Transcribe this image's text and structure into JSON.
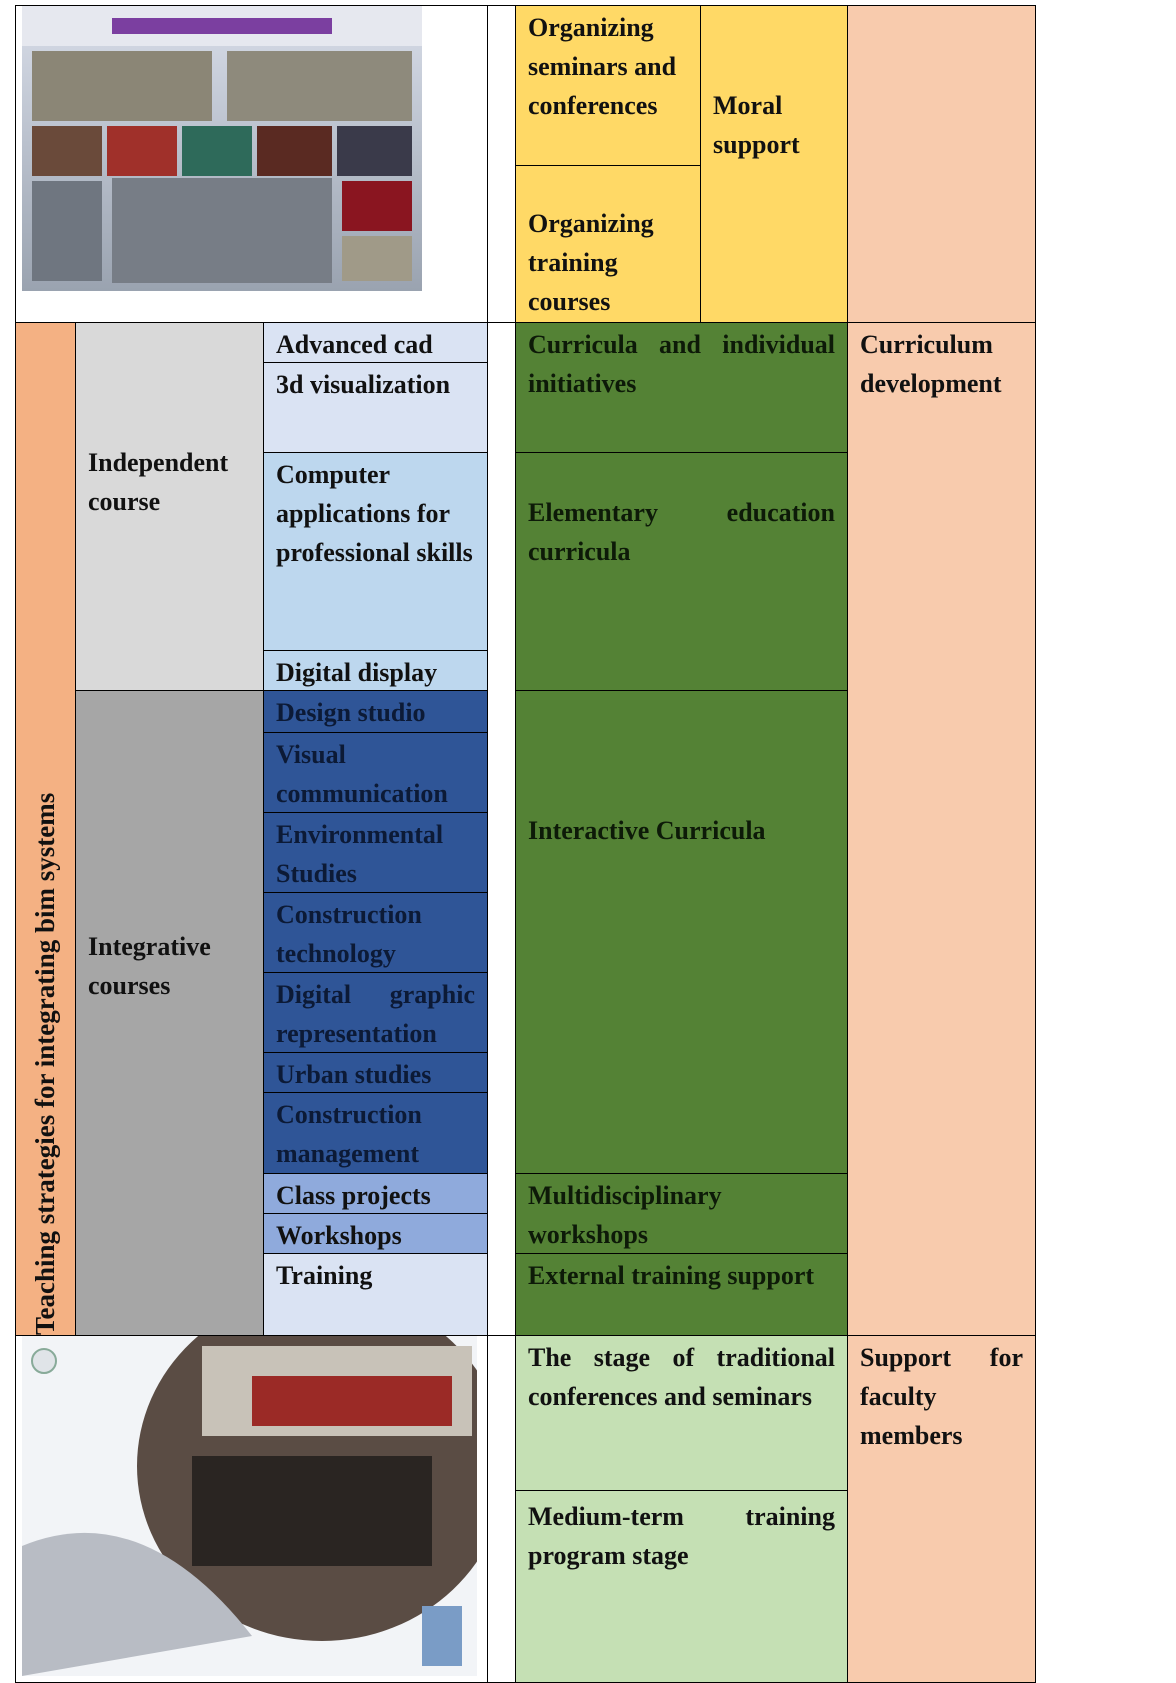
{
  "top": {
    "organizing_seminars": "Organizing seminars and conferences",
    "organizing_training": "Organizing training courses",
    "moral_support": "Moral support"
  },
  "strategies": {
    "title": "Teaching strategies for integrating bim systems",
    "independent": {
      "label": "Independent course",
      "courses": [
        "Advanced cad",
        "3d visualization",
        "Computer applications for professional skills",
        "Digital display"
      ]
    },
    "integrative": {
      "label": "Integrative courses",
      "courses": [
        "Design studio",
        "Visual communication",
        "Environmental Studies",
        "Construction technology",
        "Digital graphic representation",
        "Urban studies",
        "Construction management",
        "Class projects",
        "Workshops",
        "Training"
      ]
    },
    "curricula": [
      "Curricula and individual initiatives",
      "Elementary education curricula",
      "Interactive Curricula",
      "Multidisciplinary workshops",
      "External training support"
    ],
    "curriculum_development": "Curriculum development"
  },
  "faculty": {
    "stages": [
      "The stage of traditional conferences and seminars",
      "Medium-term training program stage"
    ],
    "label": "Support for faculty members"
  }
}
